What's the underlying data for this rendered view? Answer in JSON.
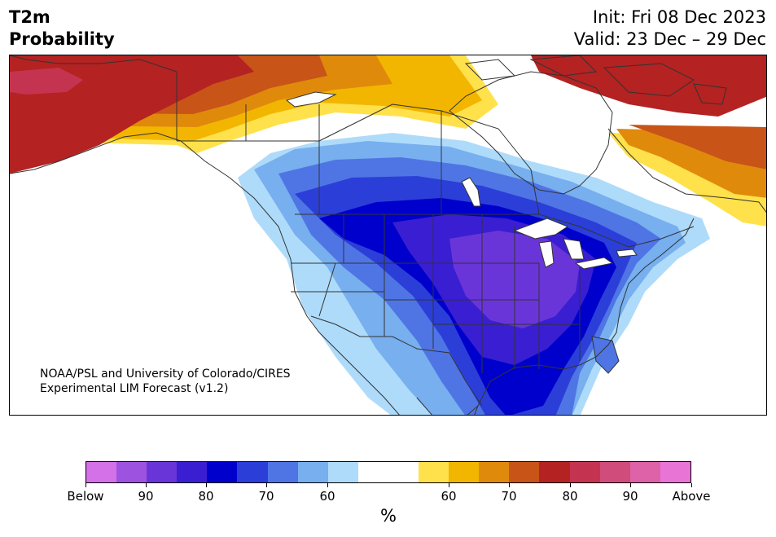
{
  "header": {
    "title_line1": "T2m",
    "title_line2": "Probability",
    "init": "Init: Fri 08 Dec 2023",
    "valid": "Valid: 23 Dec – 29 Dec"
  },
  "credit": {
    "line1": "NOAA/PSL and University of Colorado/CIRES",
    "line2": "Experimental LIM Forecast (v1.2)"
  },
  "colorbar": {
    "colors": [
      "#d471e8",
      "#9e52e0",
      "#6a35d8",
      "#3a1ed2",
      "#0000cc",
      "#2b3fd8",
      "#4f75e4",
      "#77afef",
      "#aedbfa",
      "#ffffff",
      "#ffffff",
      "#ffe14b",
      "#f2b600",
      "#e08a0c",
      "#c85418",
      "#b42222",
      "#c43450",
      "#d04c7a",
      "#de62a8",
      "#e874d6"
    ],
    "tick_labels": [
      "Below",
      "90",
      "80",
      "70",
      "60",
      "60",
      "70",
      "80",
      "90",
      "Above"
    ],
    "unit": "%"
  },
  "map_palette": {
    "land": "#ffffff",
    "border": "#333333"
  }
}
